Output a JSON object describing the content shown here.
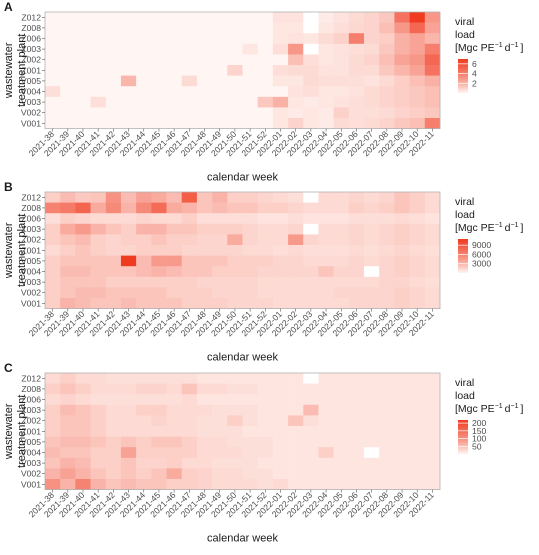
{
  "chart_data": [
    {
      "type": "heatmap",
      "panel_label": "A",
      "xlabel": "calendar week",
      "ylabel_lines": [
        "wastewater",
        "treatment plant"
      ],
      "legend_title_lines": [
        "viral",
        "load",
        "[Mgc PE",
        "−1",
        "d",
        "−1",
        "]"
      ],
      "legend_ticks": [
        {
          "label": "6",
          "value": 6
        },
        {
          "label": "4",
          "value": 4
        },
        {
          "label": "2",
          "value": 2
        }
      ],
      "vmax": 7,
      "colors": {
        "low": "#fff5f2",
        "high": "#f03b20"
      },
      "x": [
        "2021-38",
        "2021-39",
        "2021-40",
        "2021-41",
        "2021-42",
        "2021-43",
        "2021-44",
        "2021-45",
        "2021-46",
        "2021-47",
        "2021-48",
        "2021-49",
        "2021-50",
        "2021-51",
        "2021-52",
        "2022-01",
        "2022-02",
        "2022-03",
        "2022-04",
        "2022-05",
        "2022-06",
        "2022-07",
        "2022-08",
        "2022-09",
        "2022-10",
        "2022-11"
      ],
      "y": [
        "Z012",
        "Z008",
        "Z006",
        "Z003",
        "Z002",
        "Z001",
        "V005",
        "V004",
        "V003",
        "V002",
        "V001"
      ],
      "values": [
        [
          0,
          0,
          0,
          0,
          0,
          0,
          0,
          0,
          0,
          0,
          0,
          0,
          0,
          0,
          0,
          0.4,
          0.4,
          null,
          0.2,
          0.4,
          0.6,
          0.8,
          1.2,
          4.5,
          7,
          3
        ],
        [
          0,
          0,
          0,
          0,
          0,
          0,
          0,
          0,
          0,
          0,
          0,
          0,
          0,
          0,
          0,
          0.3,
          0.3,
          null,
          0.3,
          0.5,
          0.7,
          0.8,
          1.5,
          3,
          5,
          2.5
        ],
        [
          0,
          0,
          0,
          0,
          0,
          0,
          0,
          0,
          0,
          0,
          0,
          0,
          0,
          0,
          0,
          0.3,
          0.4,
          0.3,
          0.6,
          0.9,
          4,
          0.8,
          1,
          2,
          2.5,
          1.8
        ],
        [
          0,
          0,
          0,
          0,
          0,
          0,
          0,
          0,
          0,
          0,
          0,
          0,
          0,
          0.3,
          0,
          0.5,
          3,
          null,
          0.3,
          0.4,
          0.5,
          0.6,
          1.2,
          2,
          2.5,
          4
        ],
        [
          0,
          0,
          0,
          0,
          0,
          0,
          0,
          0,
          0,
          0,
          0,
          0,
          0,
          0,
          0,
          0,
          1.5,
          0.5,
          0.3,
          0.4,
          0.6,
          0.8,
          1.5,
          2.5,
          3,
          5
        ],
        [
          0,
          0,
          0,
          0,
          0,
          0,
          0,
          0,
          0,
          0,
          0,
          0,
          0.8,
          0,
          0,
          0.5,
          0.6,
          0.6,
          0.4,
          0.4,
          0.6,
          0.6,
          1.2,
          1.8,
          2.5,
          4.5
        ],
        [
          0,
          0,
          0,
          0,
          0,
          1.8,
          0,
          0,
          0,
          0.6,
          0,
          0,
          0,
          0,
          0,
          0.3,
          0.3,
          0.6,
          0.5,
          0.5,
          0.5,
          0.4,
          0.6,
          1,
          1.5,
          2
        ],
        [
          0.5,
          0,
          0,
          0,
          0,
          0,
          0,
          0,
          0,
          0,
          0,
          0,
          0,
          0,
          0,
          0,
          0.4,
          0.5,
          0.3,
          0.3,
          0.4,
          0.6,
          0.8,
          1,
          1.2,
          1.5
        ],
        [
          0,
          0,
          0,
          0.5,
          0,
          0,
          0,
          0,
          0,
          0,
          0,
          0,
          0,
          0,
          1.2,
          2,
          0.3,
          0.2,
          0.3,
          0.4,
          0.5,
          0.6,
          0.8,
          1,
          1.2,
          1.5
        ],
        [
          0,
          0,
          0,
          0,
          0,
          0,
          0,
          0,
          0,
          0,
          0,
          0,
          0,
          0,
          0,
          0.3,
          0.2,
          0.3,
          0.2,
          0.9,
          0.5,
          0.5,
          0.6,
          0.8,
          1,
          1.2
        ],
        [
          0,
          0,
          0,
          0,
          0,
          0,
          0,
          0,
          0,
          0,
          0,
          0,
          0,
          0,
          0,
          0.3,
          0.8,
          0.3,
          0.2,
          0.6,
          0.5,
          0.6,
          0.8,
          1.2,
          1.5,
          4
        ]
      ]
    },
    {
      "type": "heatmap",
      "panel_label": "B",
      "xlabel": "calendar week",
      "ylabel_lines": [
        "wastewater",
        "treatment plant"
      ],
      "legend_title_lines": [
        "viral",
        "load",
        "[Mgc PE",
        "−1",
        "d",
        "−1",
        "]"
      ],
      "legend_ticks": [
        {
          "label": "9000",
          "value": 9000
        },
        {
          "label": "6000",
          "value": 6000
        },
        {
          "label": "3000",
          "value": 3000
        }
      ],
      "vmax": 11000,
      "colors": {
        "low": "#fff5f2",
        "high": "#f03b20"
      },
      "x": [
        "2021-38",
        "2021-39",
        "2021-40",
        "2021-41",
        "2021-42",
        "2021-43",
        "2021-44",
        "2021-45",
        "2021-46",
        "2021-47",
        "2021-48",
        "2021-49",
        "2021-50",
        "2021-51",
        "2021-52",
        "2022-01",
        "2022-02",
        "2022-03",
        "2022-04",
        "2022-05",
        "2022-06",
        "2022-07",
        "2022-08",
        "2022-09",
        "2022-10",
        "2022-11"
      ],
      "y": [
        "Z012",
        "Z008",
        "Z006",
        "Z003",
        "Z002",
        "Z001",
        "V005",
        "V004",
        "V003",
        "V002",
        "V001"
      ],
      "values": [
        [
          1500,
          2500,
          1800,
          2000,
          5000,
          2500,
          4000,
          3500,
          2500,
          8500,
          2000,
          3000,
          1500,
          1500,
          1200,
          1000,
          800,
          null,
          1000,
          1000,
          1200,
          1000,
          1200,
          2000,
          1500,
          1000
        ],
        [
          6000,
          6500,
          8000,
          3500,
          5500,
          3000,
          5500,
          7500,
          3500,
          3000,
          2000,
          2500,
          2000,
          2000,
          1500,
          1500,
          1200,
          1000,
          1000,
          1000,
          1500,
          1200,
          1500,
          2000,
          1500,
          1000
        ],
        [
          800,
          1500,
          1200,
          1000,
          1000,
          1000,
          1200,
          1000,
          1000,
          1500,
          800,
          800,
          800,
          800,
          600,
          600,
          800,
          600,
          600,
          600,
          800,
          800,
          800,
          1000,
          800,
          600
        ],
        [
          1500,
          3500,
          4500,
          3000,
          2000,
          1500,
          3000,
          3000,
          2000,
          2000,
          1500,
          1500,
          1500,
          1200,
          1000,
          1000,
          1200,
          null,
          1000,
          1000,
          1200,
          1000,
          1200,
          1500,
          1200,
          1000
        ],
        [
          1500,
          2000,
          2500,
          1500,
          1200,
          1500,
          1500,
          2000,
          1500,
          1500,
          1200,
          1200,
          3500,
          1200,
          1000,
          1000,
          4500,
          1200,
          1000,
          1000,
          1200,
          1000,
          1200,
          1500,
          1200,
          1000
        ],
        [
          1000,
          1500,
          2000,
          1500,
          1200,
          1200,
          1500,
          1500,
          1500,
          1200,
          1200,
          1200,
          1200,
          1000,
          1000,
          800,
          1000,
          800,
          800,
          800,
          1000,
          800,
          1000,
          1200,
          1000,
          800
        ],
        [
          1500,
          2000,
          2000,
          2000,
          2000,
          11000,
          2500,
          4500,
          4500,
          2000,
          2000,
          2000,
          1500,
          1500,
          1500,
          1200,
          1200,
          1000,
          1000,
          1000,
          1200,
          1000,
          1200,
          1500,
          1200,
          1000
        ],
        [
          1500,
          2500,
          2500,
          2000,
          2000,
          2000,
          2500,
          3000,
          2500,
          2000,
          2000,
          1500,
          1500,
          1500,
          1200,
          1200,
          1200,
          1200,
          2000,
          1200,
          1200,
          null,
          1200,
          1500,
          1200,
          1000
        ],
        [
          1500,
          2000,
          2000,
          2000,
          1500,
          1500,
          1500,
          1500,
          1500,
          1500,
          1200,
          1200,
          1200,
          1200,
          1000,
          1000,
          1000,
          1000,
          1000,
          1000,
          1000,
          1000,
          1200,
          1200,
          1000,
          800
        ],
        [
          1500,
          2000,
          2500,
          2500,
          2000,
          2000,
          2000,
          2000,
          1500,
          1500,
          1500,
          1200,
          1200,
          1200,
          1000,
          1000,
          1000,
          1000,
          1000,
          1200,
          1200,
          1200,
          1200,
          1500,
          1200,
          1000
        ],
        [
          1500,
          3000,
          2500,
          2000,
          2000,
          2500,
          2000,
          2000,
          2000,
          1500,
          1500,
          1500,
          1200,
          1200,
          1200,
          1000,
          1000,
          1000,
          1000,
          1000,
          1200,
          1200,
          1200,
          1500,
          1200,
          1000
        ]
      ]
    },
    {
      "type": "heatmap",
      "panel_label": "C",
      "xlabel": "calendar week",
      "ylabel_lines": [
        "wastewater",
        "treatment plant"
      ],
      "legend_title_lines": [
        "viral",
        "load",
        "[Mgc PE",
        "−1",
        "d",
        "−1",
        "]"
      ],
      "legend_ticks": [
        {
          "label": "200",
          "value": 200
        },
        {
          "label": "150",
          "value": 150
        },
        {
          "label": "100",
          "value": 100
        },
        {
          "label": "50",
          "value": 50
        }
      ],
      "vmax": 220,
      "colors": {
        "low": "#fff5f2",
        "high": "#f03b20"
      },
      "x": [
        "2021-38",
        "2021-39",
        "2021-40",
        "2021-41",
        "2021-42",
        "2021-43",
        "2021-44",
        "2021-45",
        "2021-46",
        "2021-47",
        "2021-48",
        "2021-49",
        "2021-50",
        "2021-51",
        "2021-52",
        "2022-01",
        "2022-02",
        "2022-03",
        "2022-04",
        "2022-05",
        "2022-06",
        "2022-07",
        "2022-08",
        "2022-09",
        "2022-10",
        "2022-11"
      ],
      "y": [
        "Z012",
        "Z008",
        "Z006",
        "Z003",
        "Z002",
        "Z001",
        "V005",
        "V004",
        "V003",
        "V002",
        "V001"
      ],
      "values": [
        [
          20,
          30,
          20,
          20,
          15,
          15,
          15,
          15,
          15,
          15,
          10,
          10,
          10,
          10,
          10,
          10,
          10,
          null,
          10,
          10,
          10,
          10,
          10,
          10,
          10,
          10
        ],
        [
          30,
          40,
          30,
          20,
          20,
          20,
          25,
          25,
          20,
          40,
          20,
          20,
          15,
          15,
          10,
          10,
          10,
          10,
          10,
          10,
          10,
          10,
          10,
          10,
          10,
          10
        ],
        [
          20,
          25,
          20,
          15,
          15,
          15,
          15,
          15,
          15,
          20,
          10,
          10,
          10,
          10,
          10,
          10,
          10,
          10,
          10,
          10,
          10,
          10,
          10,
          10,
          10,
          10
        ],
        [
          30,
          50,
          40,
          30,
          20,
          20,
          30,
          30,
          20,
          20,
          20,
          15,
          15,
          15,
          10,
          10,
          10,
          50,
          10,
          10,
          10,
          10,
          10,
          10,
          10,
          10
        ],
        [
          30,
          40,
          40,
          30,
          20,
          20,
          20,
          25,
          20,
          20,
          15,
          15,
          30,
          15,
          10,
          10,
          40,
          15,
          10,
          10,
          10,
          10,
          10,
          10,
          10,
          10
        ],
        [
          30,
          40,
          40,
          30,
          20,
          20,
          20,
          20,
          20,
          20,
          15,
          15,
          15,
          10,
          10,
          10,
          10,
          10,
          10,
          10,
          10,
          10,
          10,
          10,
          10,
          10
        ],
        [
          40,
          50,
          50,
          40,
          30,
          40,
          30,
          40,
          40,
          30,
          20,
          20,
          15,
          15,
          15,
          10,
          10,
          10,
          10,
          10,
          10,
          10,
          10,
          10,
          10,
          10
        ],
        [
          50,
          40,
          40,
          30,
          30,
          80,
          30,
          30,
          30,
          30,
          20,
          20,
          20,
          15,
          15,
          10,
          10,
          10,
          30,
          10,
          10,
          null,
          10,
          10,
          10,
          10
        ],
        [
          40,
          60,
          50,
          30,
          30,
          40,
          25,
          25,
          30,
          20,
          20,
          15,
          15,
          15,
          10,
          10,
          10,
          10,
          10,
          10,
          10,
          10,
          10,
          10,
          10,
          10
        ],
        [
          60,
          80,
          60,
          40,
          30,
          40,
          30,
          40,
          70,
          30,
          25,
          20,
          20,
          15,
          15,
          10,
          10,
          10,
          10,
          10,
          10,
          10,
          10,
          10,
          10,
          10
        ],
        [
          100,
          60,
          120,
          60,
          40,
          50,
          40,
          40,
          30,
          30,
          25,
          20,
          20,
          20,
          15,
          20,
          10,
          10,
          10,
          10,
          10,
          10,
          10,
          10,
          10,
          10
        ]
      ]
    }
  ]
}
